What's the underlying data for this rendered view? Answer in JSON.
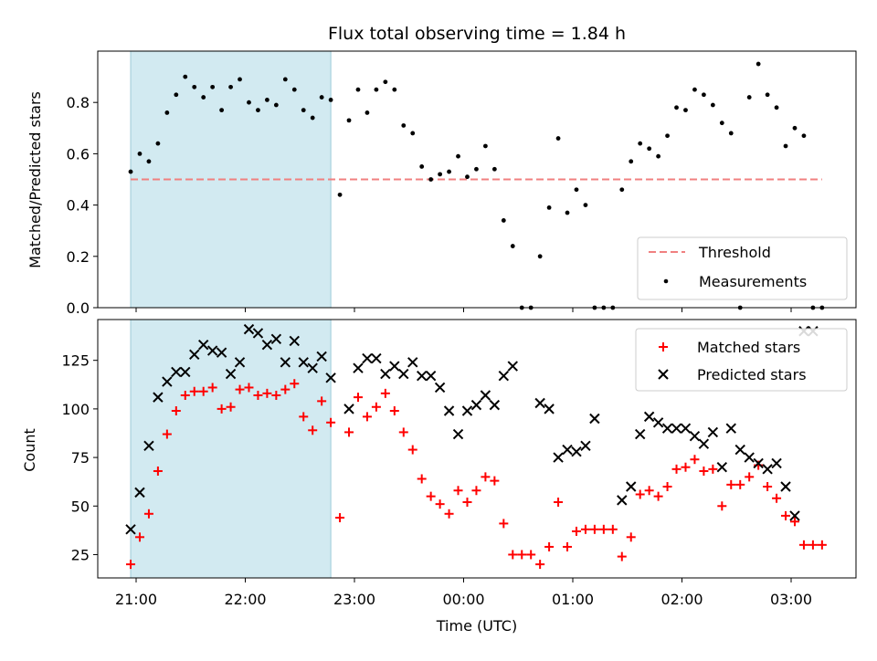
{
  "title": "Flux total observing time = 1.84 h",
  "chart_data": [
    {
      "type": "scatter",
      "ylabel": "Matched/Predicted stars",
      "ylim": [
        0,
        1.0
      ],
      "yticks": [
        0.0,
        0.2,
        0.4,
        0.6,
        0.8
      ],
      "ytick_labels": [
        "0.0",
        "0.2",
        "0.4",
        "0.6",
        "0.8"
      ],
      "shaded_span": [
        "20:57",
        "22:47"
      ],
      "threshold": {
        "name": "Threshold",
        "y": 0.5,
        "x_range": [
          "20:57",
          "03:17"
        ],
        "color": "#f08080"
      },
      "legend": {
        "position": "lower-right",
        "entries": [
          "Threshold",
          "Measurements"
        ]
      },
      "series": [
        {
          "name": "Measurements",
          "color": "#000000",
          "x": [
            "20:57",
            "21:02",
            "21:07",
            "21:12",
            "21:17",
            "21:22",
            "21:27",
            "21:32",
            "21:37",
            "21:42",
            "21:47",
            "21:52",
            "21:57",
            "22:02",
            "22:07",
            "22:12",
            "22:17",
            "22:22",
            "22:27",
            "22:32",
            "22:37",
            "22:42",
            "22:47",
            "22:52",
            "22:57",
            "23:02",
            "23:07",
            "23:12",
            "23:17",
            "23:22",
            "23:27",
            "23:32",
            "23:37",
            "23:42",
            "23:47",
            "23:52",
            "23:57",
            "00:02",
            "00:07",
            "00:12",
            "00:17",
            "00:22",
            "00:27",
            "00:32",
            "00:37",
            "00:42",
            "00:47",
            "00:52",
            "00:57",
            "01:02",
            "01:07",
            "01:12",
            "01:17",
            "01:22",
            "01:27",
            "01:32",
            "01:37",
            "01:42",
            "01:47",
            "01:52",
            "01:57",
            "02:02",
            "02:07",
            "02:12",
            "02:17",
            "02:22",
            "02:27",
            "02:32",
            "02:37",
            "02:42",
            "02:47",
            "02:52",
            "02:57",
            "03:02",
            "03:07",
            "03:12",
            "03:17"
          ],
          "y": [
            0.53,
            0.6,
            0.57,
            0.64,
            0.76,
            0.83,
            0.9,
            0.86,
            0.82,
            0.86,
            0.77,
            0.86,
            0.89,
            0.8,
            0.77,
            0.81,
            0.79,
            0.89,
            0.85,
            0.77,
            0.74,
            0.82,
            0.81,
            0.44,
            0.73,
            0.85,
            0.76,
            0.85,
            0.88,
            0.85,
            0.71,
            0.68,
            0.55,
            0.5,
            0.52,
            0.53,
            0.59,
            0.51,
            0.54,
            0.63,
            0.54,
            0.34,
            0.24,
            0.0,
            0.0,
            0.2,
            0.39,
            0.66,
            0.37,
            0.46,
            0.4,
            0.0,
            0.0,
            0.0,
            0.46,
            0.57,
            0.64,
            0.62,
            0.59,
            0.67,
            0.78,
            0.77,
            0.85,
            0.83,
            0.79,
            0.72,
            0.68,
            0.0,
            0.82,
            0.95,
            0.83,
            0.78,
            0.63,
            0.7,
            0.67,
            0.0,
            0.0
          ]
        }
      ]
    },
    {
      "type": "scatter",
      "xlabel": "Time (UTC)",
      "ylabel": "Count",
      "ylim": [
        13,
        146
      ],
      "yticks": [
        25,
        50,
        75,
        100,
        125
      ],
      "ytick_labels": [
        "25",
        "50",
        "75",
        "100",
        "125"
      ],
      "x_ticks": [
        "21:00",
        "22:00",
        "23:00",
        "00:00",
        "01:00",
        "02:00",
        "03:00"
      ],
      "shaded_span": [
        "20:57",
        "22:47"
      ],
      "legend": {
        "position": "upper-right",
        "entries": [
          "Matched stars",
          "Predicted stars"
        ]
      },
      "series": [
        {
          "name": "Matched stars",
          "marker": "plus",
          "color": "#ff0000",
          "x": [
            "20:57",
            "21:02",
            "21:07",
            "21:12",
            "21:17",
            "21:22",
            "21:27",
            "21:32",
            "21:37",
            "21:42",
            "21:47",
            "21:52",
            "21:57",
            "22:02",
            "22:07",
            "22:12",
            "22:17",
            "22:22",
            "22:27",
            "22:32",
            "22:37",
            "22:42",
            "22:47",
            "22:52",
            "22:57",
            "23:02",
            "23:07",
            "23:12",
            "23:17",
            "23:22",
            "23:27",
            "23:32",
            "23:37",
            "23:42",
            "23:47",
            "23:52",
            "23:57",
            "00:02",
            "00:07",
            "00:12",
            "00:17",
            "00:22",
            "00:27",
            "00:32",
            "00:37",
            "00:42",
            "00:47",
            "00:52",
            "00:57",
            "01:02",
            "01:07",
            "01:12",
            "01:17",
            "01:22",
            "01:27",
            "01:32",
            "01:37",
            "01:42",
            "01:47",
            "01:52",
            "01:57",
            "02:02",
            "02:07",
            "02:12",
            "02:17",
            "02:22",
            "02:27",
            "02:32",
            "02:37",
            "02:42",
            "02:47",
            "02:52",
            "02:57",
            "03:02",
            "03:07",
            "03:12",
            "03:17"
          ],
          "y": [
            20,
            34,
            46,
            68,
            87,
            99,
            107,
            109,
            109,
            111,
            100,
            101,
            110,
            111,
            107,
            108,
            107,
            110,
            113,
            96,
            89,
            104,
            93,
            44,
            88,
            106,
            96,
            101,
            108,
            99,
            88,
            79,
            64,
            55,
            51,
            46,
            58,
            52,
            58,
            65,
            63,
            41,
            25,
            25,
            25,
            20,
            29,
            52,
            29,
            37,
            38,
            38,
            38,
            38,
            24,
            34,
            56,
            58,
            55,
            60,
            69,
            70,
            74,
            68,
            69,
            50,
            61,
            61,
            65,
            71,
            60,
            54,
            45,
            42,
            30,
            30,
            30
          ]
        },
        {
          "name": "Predicted stars",
          "marker": "x",
          "color": "#000000",
          "x": [
            "20:57",
            "21:02",
            "21:07",
            "21:12",
            "21:17",
            "21:22",
            "21:27",
            "21:32",
            "21:37",
            "21:42",
            "21:47",
            "21:52",
            "21:57",
            "22:02",
            "22:07",
            "22:12",
            "22:17",
            "22:22",
            "22:27",
            "22:32",
            "22:37",
            "22:42",
            "22:47",
            "22:57",
            "23:02",
            "23:07",
            "23:12",
            "23:17",
            "23:22",
            "23:27",
            "23:32",
            "23:37",
            "23:42",
            "23:47",
            "23:52",
            "23:57",
            "00:02",
            "00:07",
            "00:12",
            "00:17",
            "00:22",
            "00:27",
            "00:42",
            "00:47",
            "00:52",
            "00:57",
            "01:02",
            "01:07",
            "01:12",
            "01:27",
            "01:32",
            "01:37",
            "01:42",
            "01:47",
            "01:52",
            "01:57",
            "02:02",
            "02:07",
            "02:12",
            "02:17",
            "02:22",
            "02:27",
            "02:32",
            "02:37",
            "02:42",
            "02:47",
            "02:52",
            "02:57",
            "03:02",
            "03:07",
            "03:12"
          ],
          "y": [
            38,
            57,
            81,
            106,
            114,
            119,
            119,
            128,
            133,
            130,
            129,
            118,
            124,
            141,
            139,
            133,
            136,
            124,
            135,
            124,
            121,
            127,
            116,
            100,
            121,
            126,
            126,
            118,
            122,
            118,
            124,
            117,
            117,
            111,
            99,
            87,
            99,
            102,
            107,
            102,
            117,
            122,
            103,
            100,
            75,
            79,
            78,
            81,
            95,
            53,
            60,
            87,
            96,
            93,
            90,
            90,
            90,
            86,
            82,
            88,
            70,
            90,
            79,
            75,
            72,
            69,
            72,
            60,
            45,
            140,
            140
          ]
        }
      ]
    }
  ]
}
